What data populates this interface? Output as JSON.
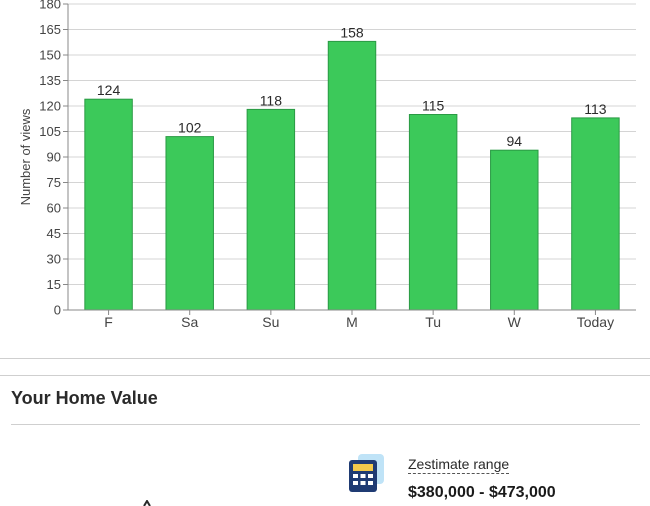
{
  "chart_data": {
    "type": "bar",
    "categories": [
      "F",
      "Sa",
      "Su",
      "M",
      "Tu",
      "W",
      "Today"
    ],
    "values": [
      124,
      102,
      118,
      158,
      115,
      94,
      113
    ],
    "ylabel": "Number of views",
    "xlabel": "",
    "yticks": [
      0,
      15,
      30,
      45,
      60,
      75,
      90,
      105,
      120,
      135,
      150,
      165,
      180
    ],
    "ylim": [
      0,
      180
    ],
    "grid": true,
    "bar_color": "#3cc95a",
    "bar_edge_color": "#2a9a44"
  },
  "home_value": {
    "title": "Your Home Value",
    "zestimate_label": "Zestimate range",
    "zestimate_range": "$380,000 - $473,000",
    "icon": "calculator-icon"
  }
}
